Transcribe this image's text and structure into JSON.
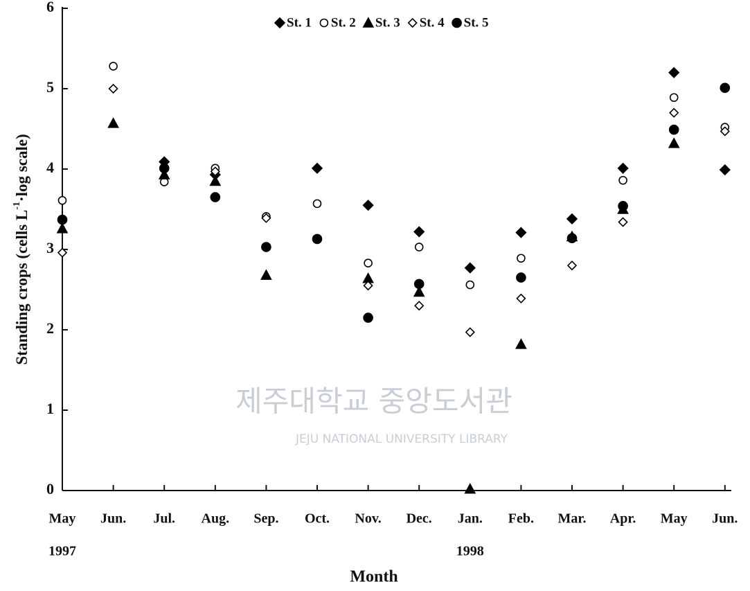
{
  "chart_data": {
    "type": "scatter",
    "categories": [
      "May",
      "Jun.",
      "Jul.",
      "Aug.",
      "Sep.",
      "Oct.",
      "Nov.",
      "Dec.",
      "Jan.",
      "Feb.",
      "Mar.",
      "Apr.",
      "May",
      "Jun."
    ],
    "year_labels": [
      "1997",
      null,
      null,
      null,
      null,
      null,
      null,
      null,
      "1998",
      null,
      null,
      null,
      null,
      null
    ],
    "xlabel": "Month",
    "ylabel_parts": [
      "Standing crops  (cells L",
      "-1",
      "·log scale)"
    ],
    "ylim": [
      0,
      6
    ],
    "yticks": [
      0,
      1,
      2,
      3,
      4,
      5,
      6
    ],
    "watermark": {
      "title": "제주대학교 중앙도서관",
      "subtitle": "JEJU NATIONAL UNIVERSITY LIBRARY"
    },
    "series": [
      {
        "name": "St. 1",
        "color": "#000000",
        "marker": "diamond-filled",
        "values": [
          null,
          null,
          4.09,
          3.93,
          null,
          4.01,
          3.55,
          3.22,
          2.77,
          3.21,
          3.38,
          4.01,
          5.2,
          3.99
        ]
      },
      {
        "name": "St. 2",
        "color": "#000000",
        "marker": "circle-open",
        "values": [
          3.61,
          5.28,
          3.84,
          4.01,
          3.41,
          3.57,
          2.83,
          3.03,
          2.56,
          2.89,
          null,
          3.86,
          4.89,
          4.52
        ]
      },
      {
        "name": "St. 3",
        "color": "#000000",
        "marker": "triangle-filled",
        "values": [
          3.26,
          4.57,
          3.93,
          3.85,
          2.68,
          null,
          2.64,
          2.47,
          0.02,
          1.82,
          3.16,
          3.5,
          4.32,
          null
        ]
      },
      {
        "name": "St. 4",
        "color": "#000000",
        "marker": "diamond-open",
        "values": [
          2.96,
          5.0,
          null,
          3.97,
          3.39,
          null,
          2.55,
          2.3,
          1.97,
          2.39,
          2.8,
          3.34,
          4.7,
          4.47
        ]
      },
      {
        "name": "St. 5",
        "color": "#000000",
        "marker": "circle-filled",
        "values": [
          3.37,
          null,
          4.01,
          3.65,
          3.03,
          3.13,
          2.15,
          2.57,
          null,
          2.65,
          3.14,
          3.54,
          4.49,
          5.01
        ]
      }
    ]
  }
}
